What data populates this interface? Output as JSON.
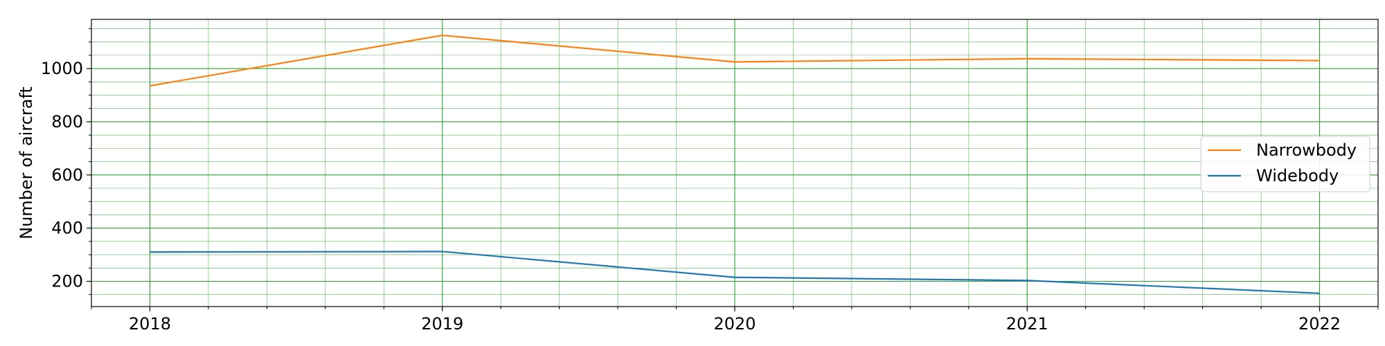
{
  "chart_data": {
    "type": "line",
    "title": "",
    "xlabel": "",
    "ylabel": "Number of aircraft",
    "x": [
      2018,
      2019,
      2020,
      2021,
      2022
    ],
    "xlim": [
      2017.8,
      2022.2
    ],
    "ylim": [
      105,
      1185
    ],
    "yticks": [
      200,
      400,
      600,
      800,
      1000
    ],
    "x_minor_step": 0.2,
    "y_minor_step": 50,
    "grid": true,
    "grid_color": "#2ca02c",
    "legend_position": "center-right",
    "series": [
      {
        "name": "Narrowbody",
        "color": "#ff7f0e",
        "values": [
          935,
          1125,
          1025,
          1037,
          1030
        ]
      },
      {
        "name": "Widebody",
        "color": "#1f77b4",
        "values": [
          310,
          312,
          215,
          203,
          155
        ]
      }
    ]
  }
}
